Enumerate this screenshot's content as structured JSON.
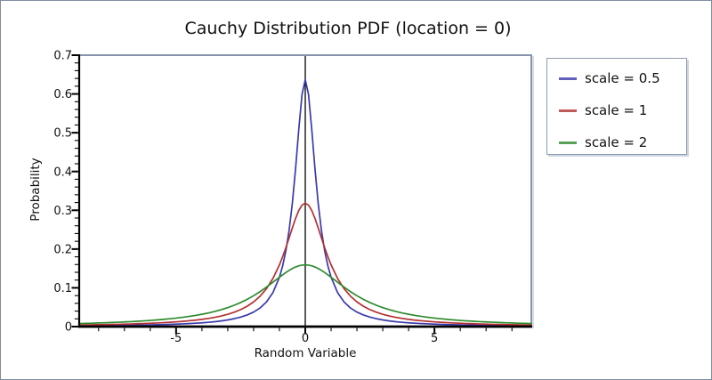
{
  "figure": {
    "title": "Cauchy Distribution PDF (location = 0)"
  },
  "colors": {
    "frame": "#8494aa",
    "frame_light": "#cdd7e2",
    "axis": "#000000",
    "background": "#ffffff",
    "blue": "#3a3aab",
    "red": "#b23131",
    "green": "#2e8b2e"
  },
  "legend": {
    "items": [
      {
        "label": "scale = 0.5",
        "color": "#3a3aab"
      },
      {
        "label": "scale = 1",
        "color": "#b23131"
      },
      {
        "label": "scale = 2",
        "color": "#2e8b2e"
      }
    ]
  },
  "chart_data": {
    "type": "line",
    "title": "Cauchy Distribution PDF (location = 0)",
    "xlabel": "Random Variable",
    "ylabel": "Probability",
    "xlim": [
      -8.75,
      8.75
    ],
    "ylim": [
      0,
      0.7
    ],
    "grid": false,
    "legend_position": "outside-top-right",
    "zero_axis_line_x": 0,
    "x_major_ticks": [
      -5,
      0,
      5
    ],
    "x_major_tick_labels": [
      "-5",
      "0",
      "5"
    ],
    "x_minor_tick_step": 1,
    "y_major_ticks": [
      0,
      0.1,
      0.2,
      0.3,
      0.4,
      0.5,
      0.6,
      0.7
    ],
    "y_major_tick_labels": [
      "0",
      "0.1",
      "0.2",
      "0.3",
      "0.4",
      "0.5",
      "0.6",
      "0.7"
    ],
    "y_minor_tick_step": 0.02,
    "x": [
      -8.75,
      -8.5,
      -8.25,
      -8,
      -7.75,
      -7.5,
      -7.25,
      -7,
      -6.75,
      -6.5,
      -6.25,
      -6,
      -5.75,
      -5.5,
      -5.25,
      -5,
      -4.75,
      -4.5,
      -4.25,
      -4,
      -3.75,
      -3.5,
      -3.25,
      -3,
      -2.75,
      -2.5,
      -2.25,
      -2,
      -1.75,
      -1.5,
      -1.25,
      -1,
      -0.875,
      -0.75,
      -0.625,
      -0.5,
      -0.375,
      -0.25,
      -0.125,
      0,
      0.125,
      0.25,
      0.375,
      0.5,
      0.625,
      0.75,
      0.875,
      1,
      1.25,
      1.5,
      1.75,
      2,
      2.25,
      2.5,
      2.75,
      3,
      3.25,
      3.5,
      3.75,
      4,
      4.25,
      4.5,
      4.75,
      5,
      5.25,
      5.5,
      5.75,
      6,
      6.25,
      6.5,
      6.75,
      7,
      7.25,
      7.5,
      7.75,
      8,
      8.25,
      8.5,
      8.75
    ],
    "series": [
      {
        "name": "scale = 0.5",
        "location": 0,
        "scale": 0.5,
        "color": "#3a3aab",
        "values": [
          0.0021,
          0.0022,
          0.0023,
          0.0025,
          0.0026,
          0.0028,
          0.003,
          0.0032,
          0.0035,
          0.0037,
          0.004,
          0.0044,
          0.0048,
          0.0052,
          0.0057,
          0.0063,
          0.007,
          0.0078,
          0.0087,
          0.0098,
          0.0111,
          0.0127,
          0.0147,
          0.0172,
          0.0204,
          0.0245,
          0.03,
          0.0374,
          0.048,
          0.0637,
          0.0878,
          0.1273,
          0.1567,
          0.1959,
          0.2484,
          0.3183,
          0.4074,
          0.5093,
          0.5992,
          0.6366,
          0.5992,
          0.5093,
          0.4074,
          0.3183,
          0.2484,
          0.1959,
          0.1567,
          0.1273,
          0.0878,
          0.0637,
          0.048,
          0.0374,
          0.03,
          0.0245,
          0.0204,
          0.0172,
          0.0147,
          0.0127,
          0.0111,
          0.0098,
          0.0087,
          0.0078,
          0.007,
          0.0063,
          0.0057,
          0.0052,
          0.0048,
          0.0044,
          0.004,
          0.0037,
          0.0035,
          0.0032,
          0.003,
          0.0028,
          0.0026,
          0.0025,
          0.0023,
          0.0022,
          0.0021
        ]
      },
      {
        "name": "scale = 1",
        "location": 0,
        "scale": 1,
        "color": "#b23131",
        "values": [
          0.0041,
          0.0043,
          0.0046,
          0.0049,
          0.0052,
          0.0056,
          0.0059,
          0.0064,
          0.0068,
          0.0074,
          0.0079,
          0.0086,
          0.0093,
          0.0102,
          0.0111,
          0.0122,
          0.0135,
          0.015,
          0.0167,
          0.0187,
          0.0211,
          0.024,
          0.0275,
          0.0318,
          0.0372,
          0.0439,
          0.0525,
          0.0637,
          0.0784,
          0.0979,
          0.1242,
          0.1592,
          0.1803,
          0.2037,
          0.2289,
          0.2546,
          0.2791,
          0.2996,
          0.3134,
          0.3183,
          0.3134,
          0.2996,
          0.2791,
          0.2546,
          0.2289,
          0.2037,
          0.1803,
          0.1592,
          0.1242,
          0.0979,
          0.0784,
          0.0637,
          0.0525,
          0.0439,
          0.0372,
          0.0318,
          0.0275,
          0.024,
          0.0211,
          0.0187,
          0.0167,
          0.015,
          0.0135,
          0.0122,
          0.0111,
          0.0102,
          0.0093,
          0.0086,
          0.0079,
          0.0074,
          0.0068,
          0.0064,
          0.0059,
          0.0056,
          0.0052,
          0.0049,
          0.0046,
          0.0043,
          0.0041
        ]
      },
      {
        "name": "scale = 2",
        "location": 0,
        "scale": 2,
        "color": "#2e8b2e",
        "values": [
          0.0079,
          0.0083,
          0.0088,
          0.0094,
          0.0099,
          0.0106,
          0.0113,
          0.012,
          0.0128,
          0.0138,
          0.0148,
          0.0159,
          0.0172,
          0.0186,
          0.0202,
          0.022,
          0.024,
          0.0263,
          0.0289,
          0.0318,
          0.0352,
          0.0392,
          0.0437,
          0.049,
          0.0551,
          0.0621,
          0.0702,
          0.0796,
          0.0901,
          0.1019,
          0.1145,
          0.1273,
          0.1336,
          0.1395,
          0.145,
          0.1498,
          0.1537,
          0.1567,
          0.1585,
          0.1592,
          0.1585,
          0.1567,
          0.1537,
          0.1498,
          0.145,
          0.1395,
          0.1336,
          0.1273,
          0.1145,
          0.1019,
          0.0901,
          0.0796,
          0.0702,
          0.0621,
          0.0551,
          0.049,
          0.0437,
          0.0392,
          0.0352,
          0.0318,
          0.0289,
          0.0263,
          0.024,
          0.022,
          0.0202,
          0.0186,
          0.0172,
          0.0159,
          0.0148,
          0.0138,
          0.0128,
          0.012,
          0.0113,
          0.0106,
          0.0099,
          0.0094,
          0.0088,
          0.0083,
          0.0079
        ]
      }
    ]
  }
}
